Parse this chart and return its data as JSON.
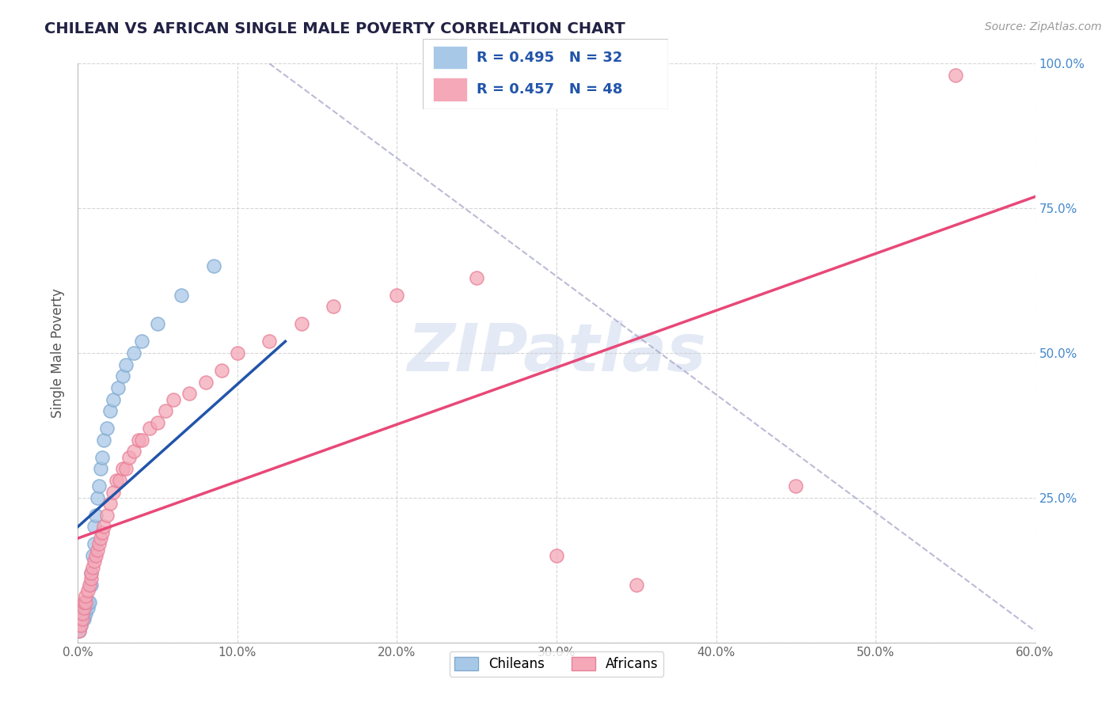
{
  "title": "CHILEAN VS AFRICAN SINGLE MALE POVERTY CORRELATION CHART",
  "source": "Source: ZipAtlas.com",
  "ylabel": "Single Male Poverty",
  "xlim": [
    0.0,
    0.6
  ],
  "ylim": [
    0.0,
    1.0
  ],
  "xticks": [
    0.0,
    0.1,
    0.2,
    0.3,
    0.4,
    0.5,
    0.6
  ],
  "yticks": [
    0.0,
    0.25,
    0.5,
    0.75,
    1.0
  ],
  "xtick_labels": [
    "0.0%",
    "10.0%",
    "20.0%",
    "30.0%",
    "40.0%",
    "50.0%",
    "60.0%"
  ],
  "ytick_labels_right": [
    "",
    "25.0%",
    "50.0%",
    "75.0%",
    "100.0%"
  ],
  "chilean_color": "#a8c8e8",
  "african_color": "#f4a8b8",
  "chilean_edge_color": "#80aad0",
  "african_edge_color": "#e88098",
  "chilean_line_color": "#2255aa",
  "african_line_color": "#e84878",
  "ref_line_color": "#aaaacc",
  "legend_R_chilean": "R = 0.495",
  "legend_N_chilean": "N = 32",
  "legend_R_african": "R = 0.457",
  "legend_N_african": "N = 48",
  "watermark": "ZIPatlas",
  "chilean_line_x0": 0.0,
  "chilean_line_y0": 0.2,
  "chilean_line_x1": 0.13,
  "chilean_line_y1": 0.52,
  "african_line_x0": 0.0,
  "african_line_y0": 0.18,
  "african_line_x1": 0.6,
  "african_line_y1": 0.77,
  "ref_line_x0": 0.12,
  "ref_line_y0": 1.0,
  "ref_line_x1": 0.6,
  "ref_line_y1": 0.02,
  "chilean_x": [
    0.001,
    0.002,
    0.003,
    0.004,
    0.004,
    0.005,
    0.005,
    0.006,
    0.006,
    0.007,
    0.008,
    0.008,
    0.009,
    0.01,
    0.01,
    0.011,
    0.012,
    0.013,
    0.014,
    0.015,
    0.016,
    0.018,
    0.02,
    0.022,
    0.025,
    0.028,
    0.03,
    0.035,
    0.04,
    0.05,
    0.065,
    0.085
  ],
  "chilean_y": [
    0.02,
    0.03,
    0.04,
    0.04,
    0.05,
    0.05,
    0.06,
    0.06,
    0.07,
    0.07,
    0.1,
    0.12,
    0.15,
    0.17,
    0.2,
    0.22,
    0.25,
    0.27,
    0.3,
    0.32,
    0.35,
    0.37,
    0.4,
    0.42,
    0.44,
    0.46,
    0.48,
    0.5,
    0.52,
    0.55,
    0.6,
    0.65
  ],
  "african_x": [
    0.001,
    0.002,
    0.003,
    0.003,
    0.004,
    0.004,
    0.005,
    0.005,
    0.006,
    0.007,
    0.008,
    0.008,
    0.009,
    0.01,
    0.011,
    0.012,
    0.013,
    0.014,
    0.015,
    0.016,
    0.018,
    0.02,
    0.022,
    0.024,
    0.026,
    0.028,
    0.03,
    0.032,
    0.035,
    0.038,
    0.04,
    0.045,
    0.05,
    0.055,
    0.06,
    0.07,
    0.08,
    0.09,
    0.1,
    0.12,
    0.14,
    0.16,
    0.2,
    0.25,
    0.3,
    0.35,
    0.45,
    0.55
  ],
  "african_y": [
    0.02,
    0.03,
    0.04,
    0.05,
    0.06,
    0.07,
    0.07,
    0.08,
    0.09,
    0.1,
    0.11,
    0.12,
    0.13,
    0.14,
    0.15,
    0.16,
    0.17,
    0.18,
    0.19,
    0.2,
    0.22,
    0.24,
    0.26,
    0.28,
    0.28,
    0.3,
    0.3,
    0.32,
    0.33,
    0.35,
    0.35,
    0.37,
    0.38,
    0.4,
    0.42,
    0.43,
    0.45,
    0.47,
    0.5,
    0.52,
    0.55,
    0.58,
    0.6,
    0.63,
    0.15,
    0.1,
    0.27,
    0.98
  ],
  "background_color": "#ffffff",
  "grid_color": "#cccccc",
  "title_color": "#222244",
  "tick_label_color_x": "#666666",
  "tick_label_color_y": "#4488cc"
}
